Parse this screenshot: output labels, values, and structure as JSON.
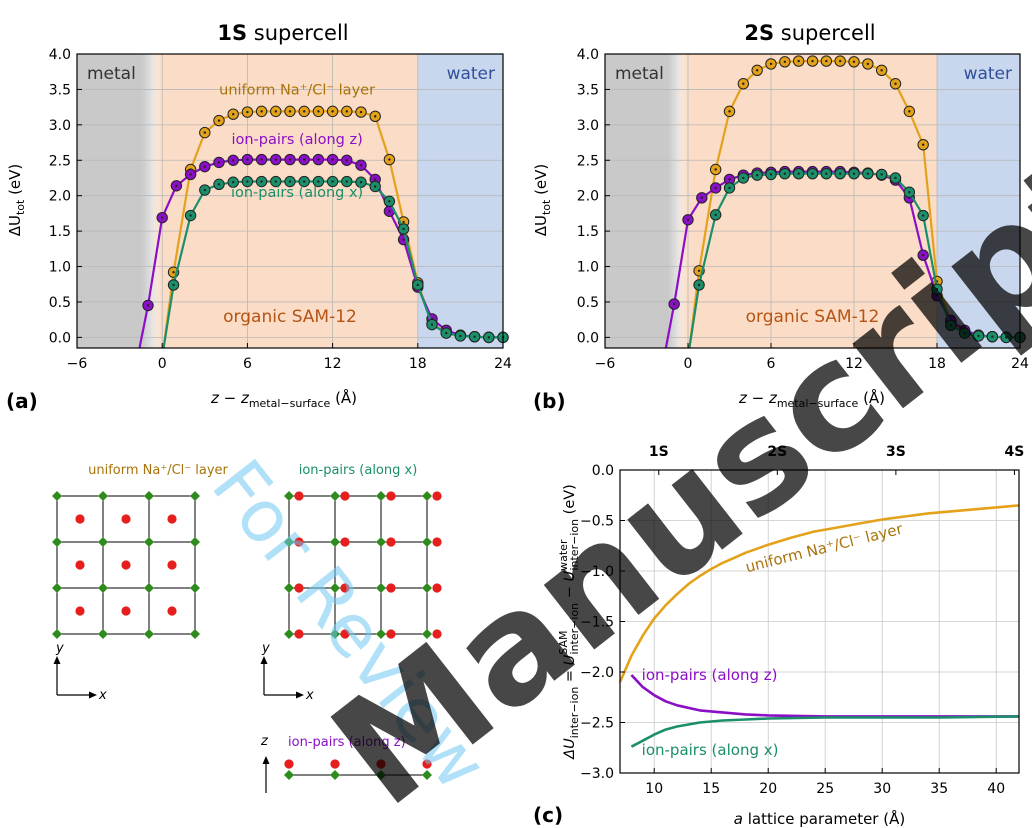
{
  "watermark": "For Review Manuscript",
  "panels": {
    "a": {
      "label": "(a)",
      "title_bold": "1S",
      "title_rest": " supercell"
    },
    "b": {
      "label": "(b)",
      "title_bold": "2S",
      "title_rest": " supercell"
    },
    "c": {
      "label": "(c)"
    }
  },
  "profile_axes": {
    "xlabel": "z − z",
    "xlabel_sub": "metal−surface",
    "xlabel_unit": " (Å)",
    "ylabel": "ΔU",
    "ylabel_sub": "tot",
    "ylabel_unit": " (eV)",
    "regions": {
      "metal": "metal",
      "sam": "organic SAM-12",
      "water": "water"
    }
  },
  "colors": {
    "uniform": "#E3A21A",
    "pairs_z": "#8B0FC6",
    "pairs_x": "#1B8F6A",
    "metal_bg": "#C9C9C9",
    "sam_bg": "#FBDCC6",
    "water_bg": "#C9D7EE",
    "ion_na": "#E61E1E",
    "ion_cl": "#2E8B1E",
    "watermark": "#6FC8F2"
  },
  "schematics": {
    "uniform_label": "uniform Na⁺/Cl⁻ layer",
    "pairs_x_label": "ion-pairs (along x)",
    "pairs_z_label": "ion-pairs (along z)",
    "axis_x": "x",
    "axis_y": "y",
    "axis_z": "z"
  },
  "chart_data": [
    {
      "type": "line",
      "panel": "a",
      "title": "1S supercell",
      "xlabel": "z − z_metal−surface (Å)",
      "ylabel": "ΔU_tot (eV)",
      "xlim": [
        -6,
        24
      ],
      "ylim": [
        -0.15,
        4.0
      ],
      "xticks": [
        -6,
        0,
        6,
        12,
        18,
        24
      ],
      "yticks": [
        0.0,
        0.5,
        1.0,
        1.5,
        2.0,
        2.5,
        3.0,
        3.5,
        4.0
      ],
      "grid": true,
      "regions": [
        {
          "name": "metal",
          "from": -6,
          "to": 0
        },
        {
          "name": "organic SAM-12",
          "from": 0,
          "to": 18
        },
        {
          "name": "water",
          "from": 18,
          "to": 24
        }
      ],
      "series": [
        {
          "name": "uniform Na⁺/Cl⁻ layer",
          "color": "uniform",
          "x": [
            0.8,
            2.0,
            3.0,
            4.0,
            5.0,
            6.0,
            7.0,
            8.0,
            9.0,
            10.0,
            11.0,
            12.0,
            13.0,
            14.0,
            15.0,
            16.0,
            17.0,
            18.0,
            19.0,
            20.0,
            21.0,
            22.0,
            23.0,
            24.0
          ],
          "y": [
            0.92,
            2.37,
            2.89,
            3.06,
            3.15,
            3.18,
            3.19,
            3.19,
            3.19,
            3.19,
            3.19,
            3.19,
            3.19,
            3.18,
            3.12,
            2.51,
            1.63,
            0.77,
            0.19,
            0.07,
            0.03,
            0.01,
            0.0,
            0.0
          ],
          "line_x": [
            0.1,
            0.8,
            2.0,
            3.0,
            4.0,
            5.0,
            6.0,
            7.0,
            8.0,
            9.0,
            10.0,
            11.0,
            12.0,
            13.0,
            14.0,
            15.0,
            16.0,
            17.0,
            18.0,
            19.0,
            20.0,
            21.0,
            22.0,
            23.0,
            24.0
          ],
          "line_y": [
            -0.15,
            0.92,
            2.37,
            2.89,
            3.06,
            3.15,
            3.18,
            3.19,
            3.19,
            3.19,
            3.19,
            3.19,
            3.19,
            3.19,
            3.18,
            3.12,
            2.51,
            1.63,
            0.77,
            0.19,
            0.07,
            0.03,
            0.01,
            0.0,
            0.0
          ]
        },
        {
          "name": "ion-pairs (along z)",
          "color": "pairs_z",
          "x": [
            -1.0,
            0.0,
            1.0,
            2.0,
            3.0,
            4.0,
            5.0,
            6.0,
            7.0,
            8.0,
            9.0,
            10.0,
            11.0,
            12.0,
            13.0,
            14.0,
            15.0,
            16.0,
            17.0,
            18.0,
            19.0,
            20.0,
            21.0,
            22.0,
            23.0,
            24.0
          ],
          "y": [
            0.45,
            1.69,
            2.14,
            2.3,
            2.41,
            2.47,
            2.5,
            2.51,
            2.51,
            2.51,
            2.51,
            2.51,
            2.51,
            2.51,
            2.5,
            2.43,
            2.23,
            1.78,
            1.38,
            0.71,
            0.26,
            0.1,
            0.03,
            0.01,
            0.0,
            0.0
          ],
          "line_x": [
            -1.6,
            -1.0,
            0.0,
            1.0,
            2.0,
            3.0,
            4.0,
            5.0,
            6.0,
            7.0,
            8.0,
            9.0,
            10.0,
            11.0,
            12.0,
            13.0,
            14.0,
            15.0,
            16.0,
            17.0,
            18.0,
            19.0,
            20.0,
            21.0,
            22.0,
            23.0,
            24.0
          ],
          "line_y": [
            -0.15,
            0.45,
            1.69,
            2.14,
            2.3,
            2.41,
            2.47,
            2.5,
            2.51,
            2.51,
            2.51,
            2.51,
            2.51,
            2.51,
            2.51,
            2.5,
            2.43,
            2.23,
            1.78,
            1.38,
            0.71,
            0.26,
            0.1,
            0.03,
            0.01,
            0.0,
            0.0
          ]
        },
        {
          "name": "ion-pairs (along x)",
          "color": "pairs_x",
          "x": [
            0.8,
            2.0,
            3.0,
            4.0,
            5.0,
            6.0,
            7.0,
            8.0,
            9.0,
            10.0,
            11.0,
            12.0,
            13.0,
            14.0,
            15.0,
            16.0,
            17.0,
            18.0,
            19.0,
            20.0,
            21.0,
            22.0,
            23.0,
            24.0
          ],
          "y": [
            0.74,
            1.72,
            2.08,
            2.16,
            2.19,
            2.2,
            2.2,
            2.2,
            2.2,
            2.2,
            2.2,
            2.2,
            2.2,
            2.19,
            2.13,
            1.92,
            1.53,
            0.74,
            0.18,
            0.06,
            0.02,
            0.01,
            0.0,
            0.0
          ],
          "line_x": [
            0.1,
            0.8,
            2.0,
            3.0,
            4.0,
            5.0,
            6.0,
            7.0,
            8.0,
            9.0,
            10.0,
            11.0,
            12.0,
            13.0,
            14.0,
            15.0,
            16.0,
            17.0,
            18.0,
            19.0,
            20.0,
            21.0,
            22.0,
            23.0,
            24.0
          ],
          "line_y": [
            -0.15,
            0.74,
            1.72,
            2.08,
            2.16,
            2.19,
            2.2,
            2.2,
            2.2,
            2.2,
            2.2,
            2.2,
            2.2,
            2.2,
            2.19,
            2.13,
            1.92,
            1.53,
            0.74,
            0.18,
            0.06,
            0.02,
            0.01,
            0.0,
            0.0
          ]
        }
      ]
    },
    {
      "type": "line",
      "panel": "b",
      "title": "2S supercell",
      "xlabel": "z − z_metal−surface (Å)",
      "ylabel": "ΔU_tot (eV)",
      "xlim": [
        -6,
        24
      ],
      "ylim": [
        -0.15,
        4.0
      ],
      "xticks": [
        -6,
        0,
        6,
        12,
        18,
        24
      ],
      "yticks": [
        0.0,
        0.5,
        1.0,
        1.5,
        2.0,
        2.5,
        3.0,
        3.5,
        4.0
      ],
      "grid": true,
      "regions": [
        {
          "name": "metal",
          "from": -6,
          "to": 0
        },
        {
          "name": "organic SAM-12",
          "from": 0,
          "to": 18
        },
        {
          "name": "water",
          "from": 18,
          "to": 24
        }
      ],
      "series": [
        {
          "name": "uniform Na⁺/Cl⁻ layer",
          "color": "uniform",
          "x": [
            0.8,
            2.0,
            3.0,
            4.0,
            5.0,
            6.0,
            7.0,
            8.0,
            9.0,
            10.0,
            11.0,
            12.0,
            13.0,
            14.0,
            15.0,
            16.0,
            17.0,
            18.0,
            19.0,
            20.0,
            21.0,
            22.0,
            23.0,
            24.0
          ],
          "y": [
            0.94,
            2.37,
            3.19,
            3.58,
            3.77,
            3.86,
            3.89,
            3.9,
            3.9,
            3.9,
            3.9,
            3.89,
            3.86,
            3.77,
            3.58,
            3.19,
            2.72,
            0.79,
            0.22,
            0.08,
            0.03,
            0.01,
            0.0,
            0.0
          ],
          "line_x": [
            0.1,
            0.8,
            2.0,
            3.0,
            4.0,
            5.0,
            6.0,
            7.0,
            8.0,
            9.0,
            10.0,
            11.0,
            12.0,
            13.0,
            14.0,
            15.0,
            16.0,
            17.0,
            18.0,
            19.0,
            20.0,
            21.0,
            22.0,
            23.0,
            24.0
          ],
          "line_y": [
            -0.15,
            0.94,
            2.37,
            3.19,
            3.58,
            3.77,
            3.86,
            3.89,
            3.9,
            3.9,
            3.9,
            3.9,
            3.89,
            3.86,
            3.77,
            3.58,
            3.19,
            2.72,
            0.79,
            0.22,
            0.08,
            0.03,
            0.01,
            0.0,
            0.0
          ]
        },
        {
          "name": "ion-pairs (along z)",
          "color": "pairs_z",
          "x": [
            -1.0,
            0.0,
            1.0,
            2.0,
            3.0,
            4.0,
            5.0,
            6.0,
            7.0,
            8.0,
            9.0,
            10.0,
            11.0,
            12.0,
            13.0,
            14.0,
            15.0,
            16.0,
            17.0,
            18.0,
            19.0,
            20.0,
            21.0,
            22.0,
            23.0,
            24.0
          ],
          "y": [
            0.47,
            1.66,
            1.97,
            2.11,
            2.23,
            2.29,
            2.32,
            2.33,
            2.34,
            2.34,
            2.34,
            2.34,
            2.34,
            2.33,
            2.32,
            2.29,
            2.22,
            1.97,
            1.16,
            0.59,
            0.24,
            0.1,
            0.03,
            0.01,
            0.0,
            0.0
          ],
          "line_x": [
            -1.6,
            -1.0,
            0.0,
            1.0,
            2.0,
            3.0,
            4.0,
            5.0,
            6.0,
            7.0,
            8.0,
            9.0,
            10.0,
            11.0,
            12.0,
            13.0,
            14.0,
            15.0,
            16.0,
            17.0,
            18.0,
            19.0,
            20.0,
            21.0,
            22.0,
            23.0,
            24.0
          ],
          "line_y": [
            -0.15,
            0.47,
            1.66,
            1.97,
            2.11,
            2.23,
            2.29,
            2.32,
            2.33,
            2.34,
            2.34,
            2.34,
            2.34,
            2.34,
            2.33,
            2.32,
            2.29,
            2.22,
            1.97,
            1.16,
            0.59,
            0.24,
            0.1,
            0.03,
            0.01,
            0.0,
            0.0
          ]
        },
        {
          "name": "ion-pairs (along x)",
          "color": "pairs_x",
          "x": [
            0.8,
            2.0,
            3.0,
            4.0,
            5.0,
            6.0,
            7.0,
            8.0,
            9.0,
            10.0,
            11.0,
            12.0,
            13.0,
            14.0,
            15.0,
            16.0,
            17.0,
            18.0,
            19.0,
            20.0,
            21.0,
            22.0,
            23.0,
            24.0
          ],
          "y": [
            0.74,
            1.73,
            2.11,
            2.25,
            2.29,
            2.3,
            2.31,
            2.31,
            2.31,
            2.31,
            2.31,
            2.31,
            2.31,
            2.3,
            2.25,
            2.05,
            1.72,
            0.68,
            0.17,
            0.06,
            0.02,
            0.01,
            0.0,
            0.0
          ],
          "line_x": [
            0.1,
            0.8,
            2.0,
            3.0,
            4.0,
            5.0,
            6.0,
            7.0,
            8.0,
            9.0,
            10.0,
            11.0,
            12.0,
            13.0,
            14.0,
            15.0,
            16.0,
            17.0,
            18.0,
            19.0,
            20.0,
            21.0,
            22.0,
            23.0,
            24.0
          ],
          "line_y": [
            -0.15,
            0.74,
            1.73,
            2.11,
            2.25,
            2.29,
            2.3,
            2.31,
            2.31,
            2.31,
            2.31,
            2.31,
            2.31,
            2.31,
            2.3,
            2.25,
            2.05,
            1.72,
            0.68,
            0.17,
            0.06,
            0.02,
            0.01,
            0.0,
            0.0
          ]
        }
      ]
    },
    {
      "type": "line",
      "panel": "c",
      "xlabel": "a lattice parameter (Å)",
      "ylabel": "ΔU_inter−ion = U^SAM_inter−ion − U^water_inter−ion (eV)",
      "xlim": [
        7,
        42
      ],
      "ylim": [
        -3.0,
        0.0
      ],
      "xticks": [
        10,
        15,
        20,
        25,
        30,
        35,
        40
      ],
      "yticks": [
        0.0,
        -0.5,
        -1.0,
        -1.5,
        -2.0,
        -2.5,
        -3.0
      ],
      "top_ticks": {
        "labels": [
          "1S",
          "2S",
          "3S",
          "4S"
        ],
        "x": [
          10.4,
          20.8,
          31.2,
          41.6
        ]
      },
      "grid": true,
      "series": [
        {
          "name": "uniform Na⁺/Cl⁻ layer",
          "color": "uniform",
          "x": [
            7.0,
            8.0,
            9.0,
            10.0,
            11.0,
            12.0,
            13.0,
            14.0,
            15.0,
            16.0,
            17.0,
            18.0,
            19.0,
            20.0,
            22.0,
            24.0,
            26.0,
            28.0,
            30.0,
            32.0,
            34.0,
            36.0,
            38.0,
            40.0,
            42.0
          ],
          "y": [
            -2.1,
            -1.84,
            -1.64,
            -1.47,
            -1.34,
            -1.23,
            -1.13,
            -1.05,
            -0.98,
            -0.92,
            -0.87,
            -0.82,
            -0.78,
            -0.74,
            -0.67,
            -0.61,
            -0.57,
            -0.53,
            -0.49,
            -0.46,
            -0.43,
            -0.41,
            -0.39,
            -0.37,
            -0.35
          ]
        },
        {
          "name": "ion-pairs (along z)",
          "color": "pairs_z",
          "x": [
            8.0,
            9.0,
            10.0,
            11.0,
            12.0,
            14.0,
            16.0,
            18.0,
            20.0,
            25.0,
            30.0,
            35.0,
            42.0
          ],
          "y": [
            -2.03,
            -2.15,
            -2.23,
            -2.29,
            -2.33,
            -2.38,
            -2.4,
            -2.42,
            -2.43,
            -2.44,
            -2.44,
            -2.44,
            -2.44
          ]
        },
        {
          "name": "ion-pairs (along x)",
          "color": "pairs_x",
          "x": [
            8.0,
            9.0,
            10.0,
            11.0,
            12.0,
            14.0,
            16.0,
            18.0,
            20.0,
            25.0,
            30.0,
            35.0,
            42.0
          ],
          "y": [
            -2.74,
            -2.68,
            -2.62,
            -2.57,
            -2.54,
            -2.5,
            -2.48,
            -2.47,
            -2.46,
            -2.45,
            -2.45,
            -2.45,
            -2.44
          ]
        }
      ],
      "series_labels": [
        "uniform Na⁺/Cl⁻ layer",
        "ion-pairs (along z)",
        "ion-pairs (along x)"
      ]
    }
  ]
}
